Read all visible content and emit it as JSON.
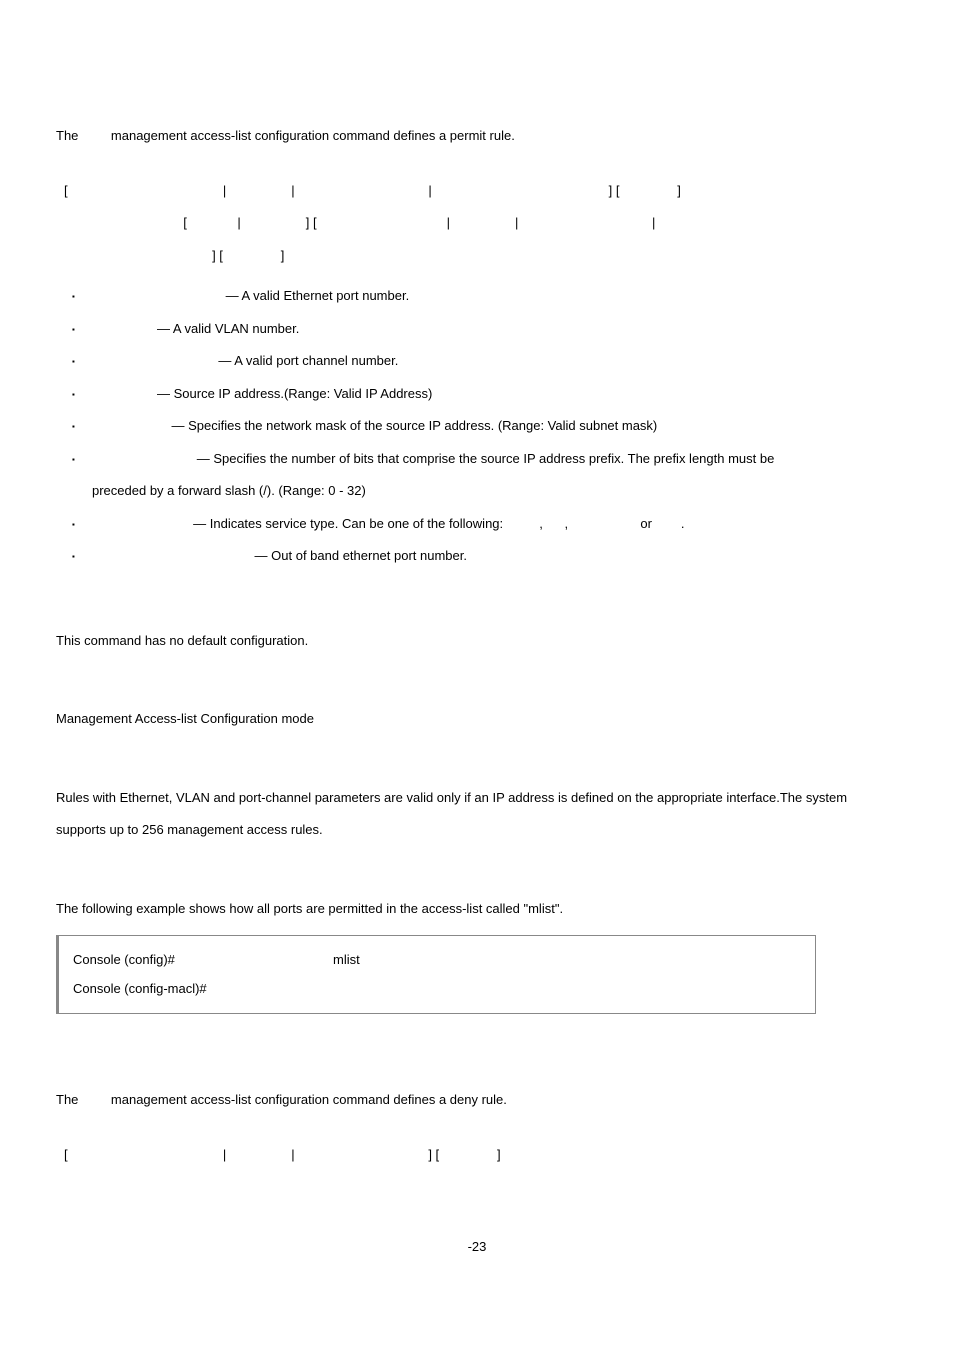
{
  "permit": {
    "intro": "The         management access-list configuration command defines a permit rule.",
    "syntax": {
      "l1": "[                                           |                  |                                     |                                                 ] [                ]",
      "l2": "                                 [              |                  ] [                                    |                  |                                     |",
      "l3": "                                         ] [                ]"
    },
    "params": {
      "eth": "                                     — A valid Ethernet port number.",
      "vlan": "                  — A valid VLAN number.",
      "pc": "                                   — A valid port channel number.",
      "ip": "                  — Source IP address.(Range: Valid IP Address)",
      "mask": "                      — Specifies the network mask of the source IP address. (Range: Valid subnet mask)",
      "prefix1": "                             — Specifies the number of bits that comprise the source IP address prefix. The prefix length must be",
      "prefix2": "preceded by a forward slash (/). (Range: 0 - 32)",
      "service": "                            — Indicates service type. Can be one of the following:          ,      ,                    or        .",
      "oob": "                                             — Out of band ethernet port number."
    }
  },
  "default_cfg": "This command has no default configuration.",
  "mode": "Management Access-list Configuration mode",
  "guidelines": "Rules with Ethernet, VLAN and port-channel parameters are valid only if an IP address is defined on the appropriate interface.The system supports up to 256 management access rules.",
  "example": {
    "intro": "The following example shows how all ports are permitted in the access-list called \"mlist\".",
    "row1_prompt": "Console (config)#",
    "row1_cmd": "mlist",
    "row2_prompt": "Console (config-macl)#"
  },
  "deny": {
    "intro": "The         management access-list configuration command defines a deny rule.",
    "syntax": "[                                           |                  |                                     ] [                ]"
  },
  "page_num": "-23"
}
